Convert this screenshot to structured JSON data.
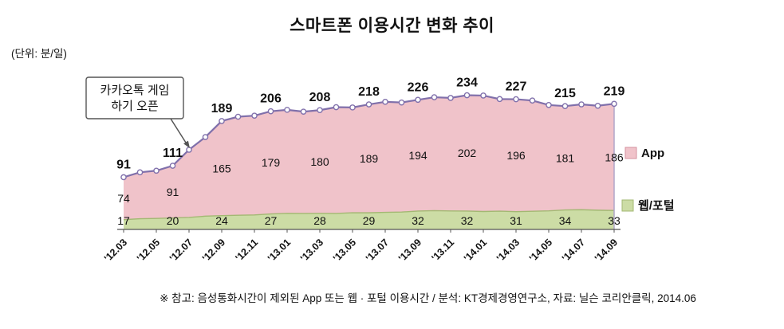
{
  "chart_data": {
    "type": "area",
    "stacked": true,
    "title": "스마트폰 이용시간 변화 추이",
    "unit_label": "(단위: 분/일)",
    "x_tick_labels": [
      "'12.03",
      "'12.05",
      "'12.07",
      "'12.09",
      "'12.11",
      "'13.01",
      "'13.03",
      "'13.05",
      "'13.07",
      "'13.09",
      "'13.11",
      "'14.01",
      "'14.03",
      "'14.05",
      "'14.07",
      "'14.09"
    ],
    "totals": [
      91,
      111,
      189,
      206,
      208,
      218,
      226,
      234,
      227,
      215,
      219
    ],
    "series": [
      {
        "name": "App",
        "values": [
          74,
          91,
          165,
          179,
          180,
          189,
          194,
          202,
          196,
          181,
          186
        ],
        "fill": "#f0c3ca",
        "edge": "#d493a0"
      },
      {
        "name": "웹/포털",
        "values": [
          17,
          20,
          24,
          27,
          28,
          29,
          32,
          32,
          31,
          34,
          33
        ],
        "fill": "#ccdca5",
        "edge": "#a3b873"
      }
    ],
    "line_color": "#8070ab",
    "axis_color": "#555555",
    "annotation_lines": [
      "카카오톡 게임",
      "하기 오픈"
    ],
    "legend": [
      "App",
      "웹/포털"
    ],
    "legend_position": "right",
    "grid": false,
    "ylim": [
      0,
      250
    ],
    "footnote": "※ 참고: 음성통화시간이 제외된 App 또는 웹 · 포털 이용시간 / 분석: KT경제경영연구소, 자료: 닐슨 코리안클릭, 2014.06"
  }
}
